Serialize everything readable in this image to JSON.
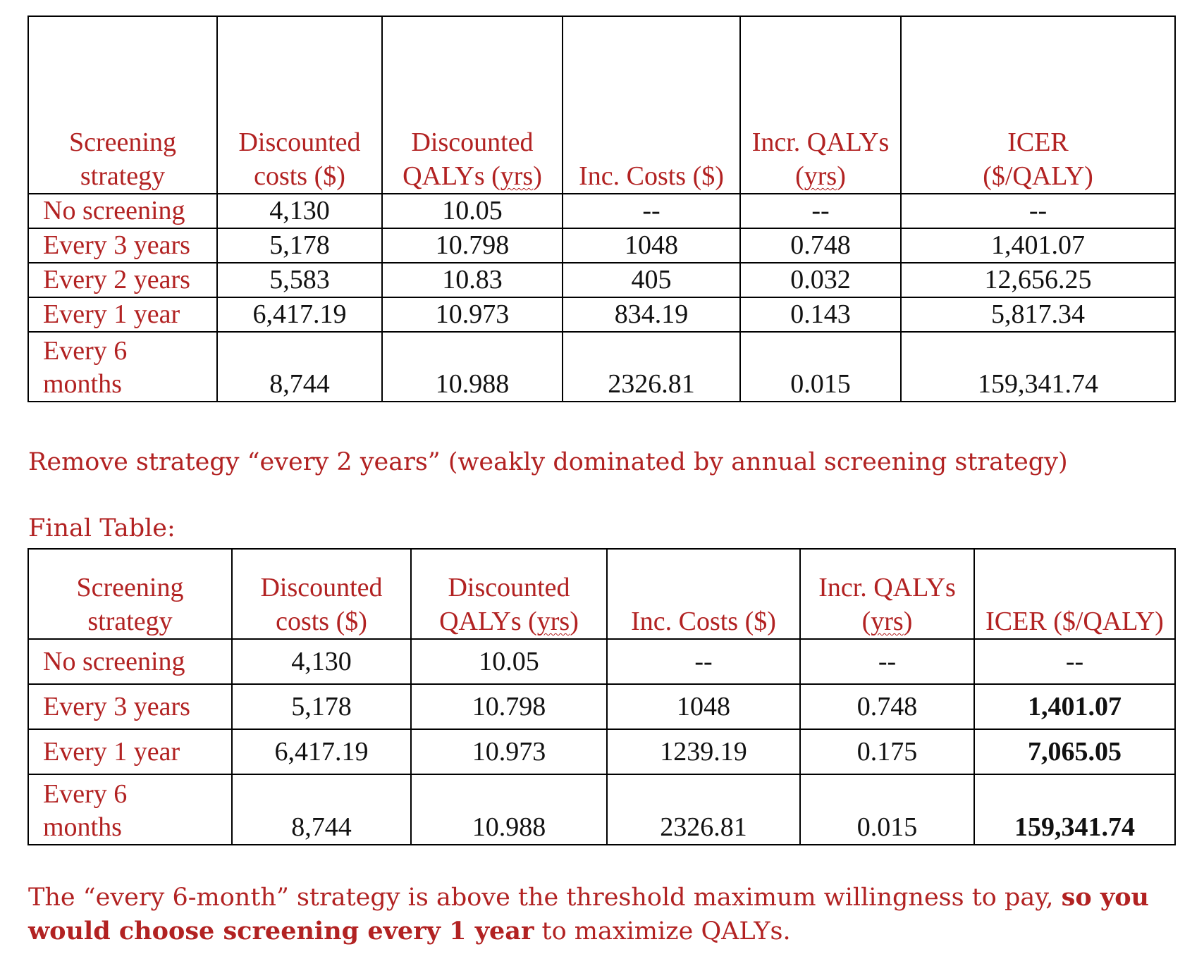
{
  "table1": {
    "headers": {
      "strategy_line1": "Screening",
      "strategy_line2": "strategy",
      "costs_line1": "Discounted",
      "costs_line2": "costs ($)",
      "qalys_line1": "Discounted",
      "qalys_line2a": "QALYs (",
      "qalys_line2b": "yrs",
      "qalys_line2c": ")",
      "inc_costs": "Inc. Costs ($)",
      "incr_qalys_line1": "Incr. QALYs",
      "incr_qalys_line2a": "(",
      "incr_qalys_line2b": "yrs",
      "incr_qalys_line2c": ")",
      "icer_line1": "ICER",
      "icer_line2": "($/QALY)"
    },
    "rows": [
      {
        "strategy": "No screening",
        "costs": "4,130",
        "qalys": "10.05",
        "inc_costs": "--",
        "incr_qalys": "--",
        "icer": "--"
      },
      {
        "strategy": "Every 3 years",
        "costs": "5,178",
        "qalys": "10.798",
        "inc_costs": "1048",
        "incr_qalys": "0.748",
        "icer": "1,401.07"
      },
      {
        "strategy": "Every 2 years",
        "costs": "5,583",
        "qalys": "10.83",
        "inc_costs": "405",
        "incr_qalys": "0.032",
        "icer": "12,656.25"
      },
      {
        "strategy": "Every 1 year",
        "costs": "6,417.19",
        "qalys": "10.973",
        "inc_costs": "834.19",
        "incr_qalys": "0.143",
        "icer": "5,817.34"
      },
      {
        "strategy_line1": "Every 6",
        "strategy_line2": "months",
        "costs": "8,744",
        "qalys": "10.988",
        "inc_costs": "2326.81",
        "incr_qalys": "0.015",
        "icer": "159,341.74"
      }
    ]
  },
  "note1": "Remove strategy “every 2 years” (weakly dominated by annual screening strategy)",
  "final_label": "Final Table:",
  "table2": {
    "headers": {
      "strategy_line1": "Screening",
      "strategy_line2": "strategy",
      "costs_line1": "Discounted",
      "costs_line2": "costs ($)",
      "qalys_line1": "Discounted",
      "qalys_line2a": "QALYs (",
      "qalys_line2b": "yrs",
      "qalys_line2c": ")",
      "inc_costs": "Inc. Costs ($)",
      "incr_qalys_line1": "Incr. QALYs",
      "incr_qalys_line2a": "(",
      "incr_qalys_line2b": "yrs",
      "incr_qalys_line2c": ")",
      "icer": "ICER ($/QALY)"
    },
    "rows": [
      {
        "strategy": "No screening",
        "costs": "4,130",
        "qalys": "10.05",
        "inc_costs": "--",
        "incr_qalys": "--",
        "icer": "--"
      },
      {
        "strategy": "Every 3 years",
        "costs": "5,178",
        "qalys": "10.798",
        "inc_costs": "1048",
        "incr_qalys": "0.748",
        "icer": "1,401.07"
      },
      {
        "strategy": "Every 1 year",
        "costs": "6,417.19",
        "qalys": "10.973",
        "inc_costs": "1239.19",
        "incr_qalys": "0.175",
        "icer": "7,065.05"
      },
      {
        "strategy_line1": "Every 6",
        "strategy_line2": "months",
        "costs": "8,744",
        "qalys": "10.988",
        "inc_costs": "2326.81",
        "incr_qalys": "0.015",
        "icer": "159,341.74"
      }
    ]
  },
  "note2": {
    "part1": "The “every 6-month” strategy is above the threshold maximum willingness to pay, ",
    "bold": "so you would choose screening every 1 year",
    "part2": " to maximize QALYs."
  },
  "colors": {
    "accent": "#b22222",
    "text": "#111111",
    "border": "#000000"
  }
}
